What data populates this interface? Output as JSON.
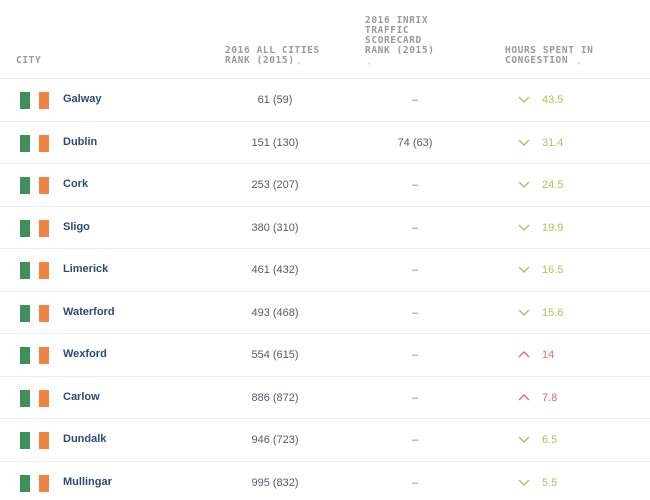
{
  "table": {
    "headers": {
      "city": "CITY",
      "all_cities_rank_line1": "2016 ALL CITIES",
      "all_cities_rank_line2": "RANK (2015)",
      "inrix_line1": "2016 INRIX",
      "inrix_line2": "TRAFFIC",
      "inrix_line3": "SCORECARD",
      "inrix_line4": "RANK (2015)",
      "hours_line1": "HOURS SPENT IN",
      "hours_line2": "CONGESTION",
      "sort_icon": "⌄"
    },
    "colors": {
      "flag_green": "#3f8f5a",
      "flag_orange": "#ee8344",
      "trend_down": "#a8c45a",
      "trend_up": "#e26a5e",
      "city_text": "#2d4a78"
    },
    "rows": [
      {
        "city": "Galway",
        "all_rank": "61 (59)",
        "inrix_rank": "–",
        "trend": "down",
        "hours": "43.5"
      },
      {
        "city": "Dublin",
        "all_rank": "151 (130)",
        "inrix_rank": "74 (63)",
        "trend": "down",
        "hours": "31.4"
      },
      {
        "city": "Cork",
        "all_rank": "253 (207)",
        "inrix_rank": "–",
        "trend": "down",
        "hours": "24.5"
      },
      {
        "city": "Sligo",
        "all_rank": "380 (310)",
        "inrix_rank": "–",
        "trend": "down",
        "hours": "19.9"
      },
      {
        "city": "Limerick",
        "all_rank": "461 (432)",
        "inrix_rank": "–",
        "trend": "down",
        "hours": "16.5"
      },
      {
        "city": "Waterford",
        "all_rank": "493 (468)",
        "inrix_rank": "–",
        "trend": "down",
        "hours": "15.6"
      },
      {
        "city": "Wexford",
        "all_rank": "554 (615)",
        "inrix_rank": "–",
        "trend": "up",
        "hours": "14"
      },
      {
        "city": "Carlow",
        "all_rank": "886 (872)",
        "inrix_rank": "–",
        "trend": "up",
        "hours": "7.8"
      },
      {
        "city": "Dundalk",
        "all_rank": "946 (723)",
        "inrix_rank": "–",
        "trend": "down",
        "hours": "6.5"
      },
      {
        "city": "Mullingar",
        "all_rank": "995 (832)",
        "inrix_rank": "–",
        "trend": "down",
        "hours": "5.5"
      }
    ]
  }
}
